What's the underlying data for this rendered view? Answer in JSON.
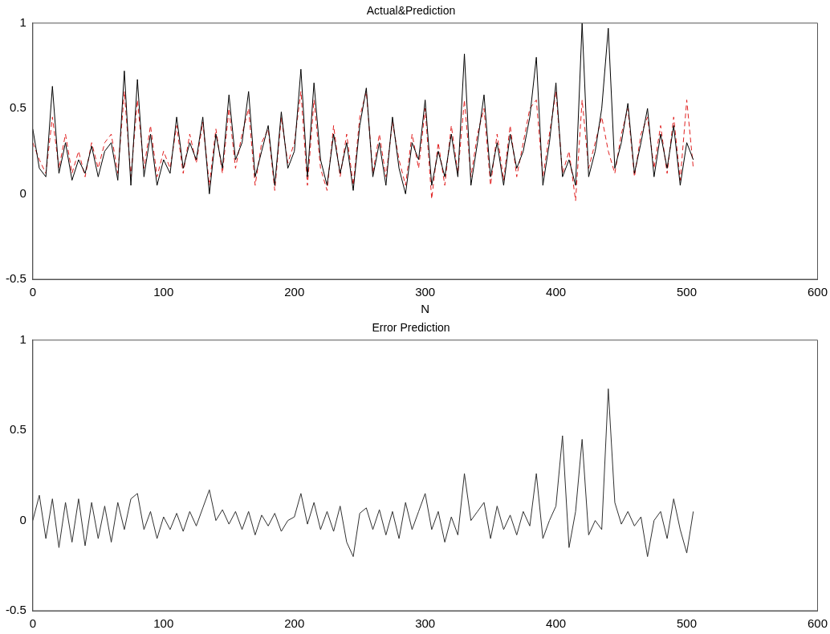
{
  "chart_data": [
    {
      "type": "line",
      "title": "Actual&Prediction",
      "xlabel": "N",
      "xlim": [
        0,
        600
      ],
      "xticks": [
        0,
        100,
        200,
        300,
        400,
        500,
        600
      ],
      "ylim": [
        -0.5,
        1
      ],
      "yticks": [
        -0.5,
        0,
        0.5,
        1
      ],
      "grid": false,
      "legend": false,
      "x": [
        0,
        5,
        10,
        15,
        20,
        25,
        30,
        35,
        40,
        45,
        50,
        55,
        60,
        65,
        70,
        75,
        80,
        85,
        90,
        95,
        100,
        105,
        110,
        115,
        120,
        125,
        130,
        135,
        140,
        145,
        150,
        155,
        160,
        165,
        170,
        175,
        180,
        185,
        190,
        195,
        200,
        205,
        210,
        215,
        220,
        225,
        230,
        235,
        240,
        245,
        250,
        255,
        260,
        265,
        270,
        275,
        280,
        285,
        290,
        295,
        300,
        305,
        310,
        315,
        320,
        325,
        330,
        335,
        340,
        345,
        350,
        355,
        360,
        365,
        370,
        375,
        380,
        385,
        390,
        395,
        400,
        405,
        410,
        415,
        420,
        425,
        430,
        435,
        440,
        445,
        450,
        455,
        460,
        465,
        470,
        475,
        480,
        485,
        490,
        495,
        500,
        505
      ],
      "series": [
        {
          "color": "#000000",
          "line_style": "solid",
          "values": [
            0.38,
            0.15,
            0.1,
            0.63,
            0.12,
            0.3,
            0.08,
            0.2,
            0.12,
            0.28,
            0.1,
            0.25,
            0.3,
            0.08,
            0.72,
            0.05,
            0.67,
            0.1,
            0.35,
            0.05,
            0.2,
            0.12,
            0.45,
            0.15,
            0.3,
            0.2,
            0.45,
            0.0,
            0.35,
            0.15,
            0.58,
            0.2,
            0.3,
            0.6,
            0.1,
            0.25,
            0.4,
            0.05,
            0.48,
            0.15,
            0.25,
            0.73,
            0.1,
            0.65,
            0.2,
            0.05,
            0.35,
            0.12,
            0.3,
            0.02,
            0.4,
            0.62,
            0.1,
            0.3,
            0.05,
            0.45,
            0.15,
            0.0,
            0.3,
            0.2,
            0.55,
            0.05,
            0.25,
            0.1,
            0.35,
            0.1,
            0.82,
            0.05,
            0.3,
            0.58,
            0.1,
            0.3,
            0.05,
            0.35,
            0.15,
            0.25,
            0.45,
            0.8,
            0.05,
            0.3,
            0.65,
            0.1,
            0.2,
            0.05,
            1.0,
            0.1,
            0.25,
            0.5,
            0.97,
            0.15,
            0.3,
            0.53,
            0.12,
            0.3,
            0.5,
            0.1,
            0.35,
            0.15,
            0.4,
            0.05,
            0.3,
            0.2
          ]
        },
        {
          "color": "#e02020",
          "line_style": "dashed",
          "values": [
            0.3,
            0.2,
            0.12,
            0.45,
            0.15,
            0.35,
            0.12,
            0.25,
            0.1,
            0.3,
            0.15,
            0.3,
            0.35,
            0.12,
            0.6,
            0.1,
            0.55,
            0.15,
            0.4,
            0.1,
            0.25,
            0.15,
            0.4,
            0.12,
            0.35,
            0.18,
            0.42,
            0.05,
            0.38,
            0.12,
            0.5,
            0.15,
            0.35,
            0.5,
            0.05,
            0.3,
            0.38,
            0.02,
            0.45,
            0.18,
            0.3,
            0.6,
            0.05,
            0.55,
            0.15,
            0.02,
            0.4,
            0.1,
            0.35,
            0.05,
            0.45,
            0.6,
            0.12,
            0.35,
            0.1,
            0.42,
            0.2,
            0.05,
            0.35,
            0.15,
            0.5,
            -0.03,
            0.3,
            0.05,
            0.4,
            0.12,
            0.55,
            0.1,
            0.35,
            0.5,
            0.05,
            0.35,
            0.08,
            0.4,
            0.1,
            0.3,
            0.5,
            0.55,
            0.1,
            0.35,
            0.6,
            0.12,
            0.25,
            -0.04,
            0.55,
            0.15,
            0.3,
            0.45,
            0.25,
            0.12,
            0.35,
            0.5,
            0.1,
            0.35,
            0.45,
            0.15,
            0.4,
            0.12,
            0.45,
            0.08,
            0.55,
            0.15
          ]
        }
      ]
    },
    {
      "type": "line",
      "title": "Error Prediction",
      "xlim": [
        0,
        600
      ],
      "xticks": [
        0,
        100,
        200,
        300,
        400,
        500,
        600
      ],
      "ylim": [
        -0.5,
        1
      ],
      "yticks": [
        -0.5,
        0,
        0.5,
        1
      ],
      "grid": false,
      "legend": false,
      "x": [
        0,
        5,
        10,
        15,
        20,
        25,
        30,
        35,
        40,
        45,
        50,
        55,
        60,
        65,
        70,
        75,
        80,
        85,
        90,
        95,
        100,
        105,
        110,
        115,
        120,
        125,
        130,
        135,
        140,
        145,
        150,
        155,
        160,
        165,
        170,
        175,
        180,
        185,
        190,
        195,
        200,
        205,
        210,
        215,
        220,
        225,
        230,
        235,
        240,
        245,
        250,
        255,
        260,
        265,
        270,
        275,
        280,
        285,
        290,
        295,
        300,
        305,
        310,
        315,
        320,
        325,
        330,
        335,
        340,
        345,
        350,
        355,
        360,
        365,
        370,
        375,
        380,
        385,
        390,
        395,
        400,
        405,
        410,
        415,
        420,
        425,
        430,
        435,
        440,
        445,
        450,
        455,
        460,
        465,
        470,
        475,
        480,
        485,
        490,
        495,
        500,
        505
      ],
      "series": [
        {
          "color": "#303030",
          "line_style": "solid",
          "values": [
            0.0,
            0.14,
            -0.1,
            0.12,
            -0.15,
            0.1,
            -0.12,
            0.12,
            -0.14,
            0.1,
            -0.1,
            0.08,
            -0.12,
            0.1,
            -0.05,
            0.12,
            0.15,
            -0.05,
            0.05,
            -0.1,
            0.02,
            -0.05,
            0.04,
            -0.06,
            0.05,
            -0.03,
            0.07,
            0.17,
            0.0,
            0.06,
            -0.02,
            0.05,
            -0.05,
            0.05,
            -0.08,
            0.03,
            -0.03,
            0.04,
            -0.06,
            0.0,
            0.02,
            0.15,
            -0.02,
            0.1,
            -0.05,
            0.05,
            -0.06,
            0.08,
            -0.12,
            -0.2,
            0.04,
            0.07,
            -0.05,
            0.06,
            -0.08,
            0.05,
            -0.1,
            0.1,
            -0.05,
            0.05,
            0.15,
            -0.05,
            0.05,
            -0.12,
            0.02,
            -0.08,
            0.26,
            0.0,
            0.05,
            0.1,
            -0.1,
            0.08,
            -0.05,
            0.03,
            -0.08,
            0.05,
            -0.03,
            0.26,
            -0.1,
            0.0,
            0.08,
            0.47,
            -0.15,
            0.05,
            0.45,
            -0.08,
            0.0,
            -0.05,
            0.73,
            0.1,
            -0.02,
            0.05,
            -0.03,
            0.02,
            -0.2,
            0.0,
            0.05,
            -0.1,
            0.12,
            -0.05,
            -0.18,
            0.05
          ]
        }
      ]
    }
  ]
}
